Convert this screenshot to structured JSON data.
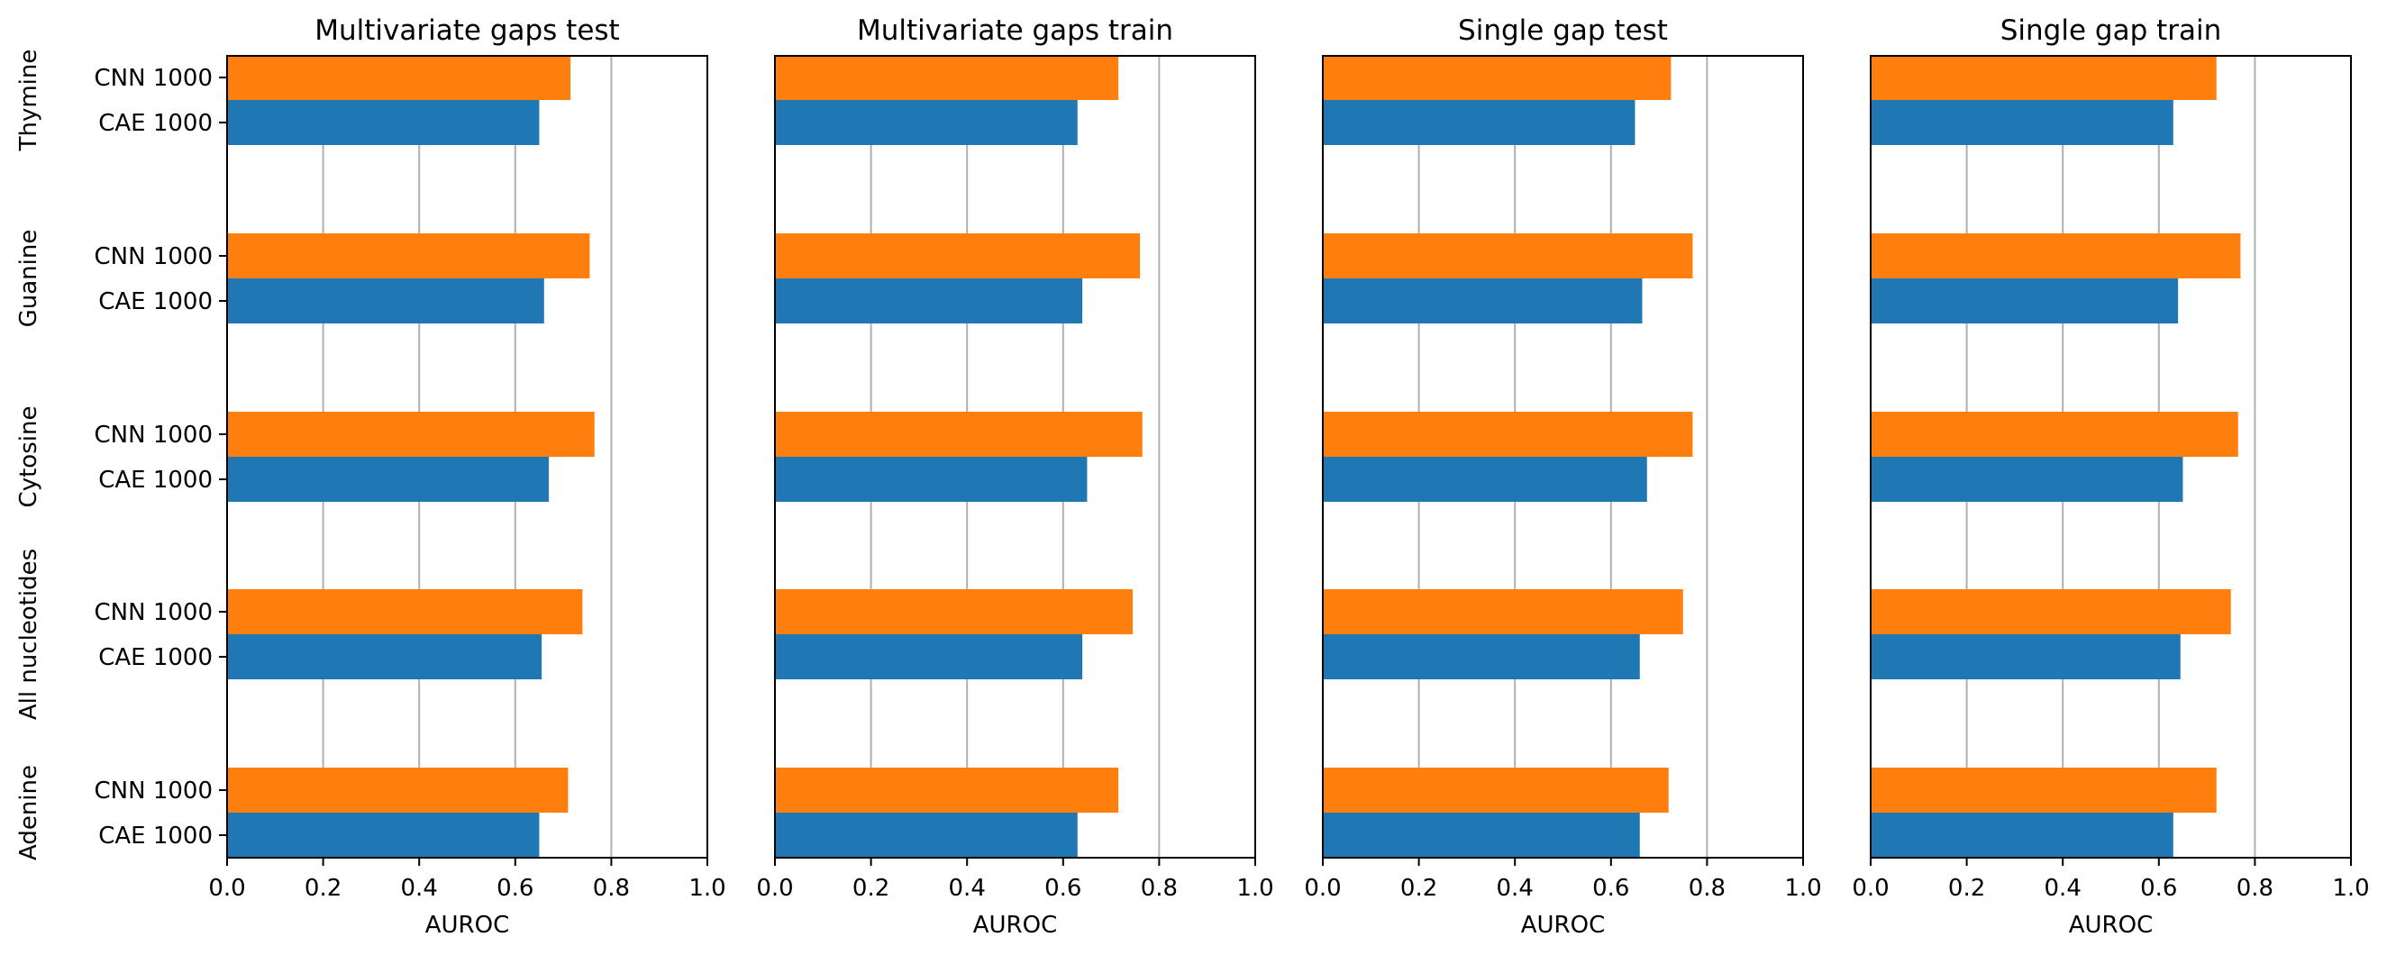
{
  "colors": {
    "cnn": "#ff7f0e",
    "cae": "#1f77b4",
    "grid": "#b0b0b0",
    "axis": "#000000"
  },
  "chart_data": [
    {
      "type": "bar",
      "orientation": "horizontal",
      "title": "Multivariate gaps test",
      "xlabel": "AUROC",
      "xlim": [
        0,
        1
      ],
      "xticks": [
        "0.0",
        "0.2",
        "0.4",
        "0.6",
        "0.8",
        "1.0"
      ],
      "grid": "x",
      "groups": [
        "Adenine",
        "All nucleotides",
        "Cytosine",
        "Guanine",
        "Thymine"
      ],
      "series": [
        {
          "name": "CAE 1000",
          "values": [
            0.65,
            0.655,
            0.67,
            0.66,
            0.65
          ]
        },
        {
          "name": "CNN 1000",
          "values": [
            0.71,
            0.74,
            0.765,
            0.755,
            0.715
          ]
        }
      ]
    },
    {
      "type": "bar",
      "orientation": "horizontal",
      "title": "Multivariate gaps train",
      "xlabel": "AUROC",
      "xlim": [
        0,
        1
      ],
      "xticks": [
        "0.0",
        "0.2",
        "0.4",
        "0.6",
        "0.8",
        "1.0"
      ],
      "grid": "x",
      "groups": [
        "Adenine",
        "All nucleotides",
        "Cytosine",
        "Guanine",
        "Thymine"
      ],
      "series": [
        {
          "name": "CAE 1000",
          "values": [
            0.63,
            0.64,
            0.65,
            0.64,
            0.63
          ]
        },
        {
          "name": "CNN 1000",
          "values": [
            0.715,
            0.745,
            0.765,
            0.76,
            0.715
          ]
        }
      ]
    },
    {
      "type": "bar",
      "orientation": "horizontal",
      "title": "Single gap test",
      "xlabel": "AUROC",
      "xlim": [
        0,
        1
      ],
      "xticks": [
        "0.0",
        "0.2",
        "0.4",
        "0.6",
        "0.8",
        "1.0"
      ],
      "grid": "x",
      "groups": [
        "Adenine",
        "All nucleotides",
        "Cytosine",
        "Guanine",
        "Thymine"
      ],
      "series": [
        {
          "name": "CAE 1000",
          "values": [
            0.66,
            0.66,
            0.675,
            0.665,
            0.65
          ]
        },
        {
          "name": "CNN 1000",
          "values": [
            0.72,
            0.75,
            0.77,
            0.77,
            0.725
          ]
        }
      ]
    },
    {
      "type": "bar",
      "orientation": "horizontal",
      "title": "Single gap train",
      "xlabel": "AUROC",
      "xlim": [
        0,
        1
      ],
      "xticks": [
        "0.0",
        "0.2",
        "0.4",
        "0.6",
        "0.8",
        "1.0"
      ],
      "grid": "x",
      "groups": [
        "Adenine",
        "All nucleotides",
        "Cytosine",
        "Guanine",
        "Thymine"
      ],
      "series": [
        {
          "name": "CAE 1000",
          "values": [
            0.63,
            0.645,
            0.65,
            0.64,
            0.63
          ]
        },
        {
          "name": "CNN 1000",
          "values": [
            0.72,
            0.75,
            0.765,
            0.77,
            0.72
          ]
        }
      ]
    }
  ]
}
